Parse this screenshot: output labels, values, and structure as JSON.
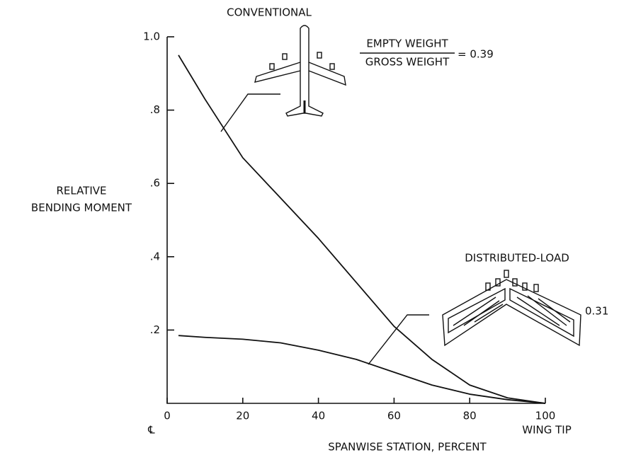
{
  "chart_data": {
    "type": "line",
    "annotations": {
      "conventional": "CONVENTIONAL",
      "distributed": "DISTRIBUTED-LOAD",
      "numerator": "EMPTY WEIGHT",
      "denominator": "GROSS WEIGHT",
      "ratio_conventional": "= 0.39",
      "ratio_distributed": "0.31",
      "centerline": "℄",
      "wing_tip": "WING TIP"
    },
    "xlabel": "SPANWISE STATION, PERCENT",
    "ylabel": [
      "RELATIVE",
      "BENDING MOMENT"
    ],
    "x": [
      3,
      10,
      20,
      30,
      40,
      50,
      60,
      70,
      80,
      90,
      100
    ],
    "series": [
      {
        "name": "CONVENTIONAL",
        "color": "#111111",
        "values": [
          0.95,
          0.83,
          0.67,
          0.56,
          0.45,
          0.33,
          0.21,
          0.12,
          0.05,
          0.015,
          0
        ]
      },
      {
        "name": "DISTRIBUTED-LOAD",
        "color": "#111111",
        "values": [
          0.185,
          0.18,
          0.175,
          0.165,
          0.145,
          0.12,
          0.085,
          0.05,
          0.025,
          0.01,
          0
        ]
      }
    ],
    "xlim": [
      0,
      100
    ],
    "ylim": [
      0,
      1
    ],
    "xticks": [
      0,
      20,
      40,
      60,
      80,
      100
    ],
    "yticks": [
      {
        "value": 1,
        "label": "1.0"
      },
      {
        "value": 0.8,
        "label": ".8"
      },
      {
        "value": 0.6,
        "label": ".6"
      },
      {
        "value": 0.4,
        "label": ".4"
      },
      {
        "value": 0.2,
        "label": ".2"
      }
    ]
  }
}
